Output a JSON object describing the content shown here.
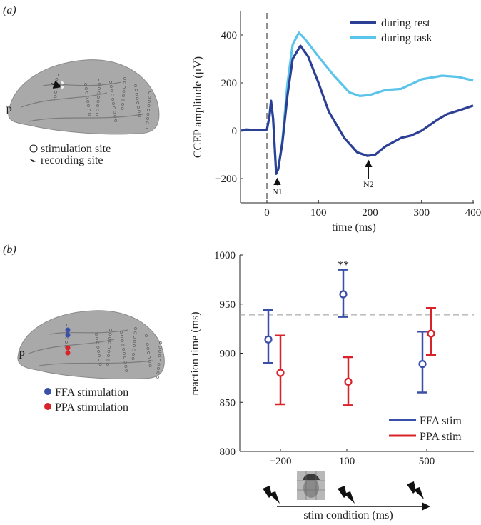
{
  "panel_a": {
    "label": "(a)",
    "brain": {
      "orientation_label": "P"
    },
    "legend": [
      {
        "icon": "open-circle-icon",
        "label": "stimulation site"
      },
      {
        "icon": "arrow-icon",
        "label": "recording site"
      }
    ]
  },
  "panel_b": {
    "label": "(b)",
    "brain": {
      "orientation_label": "P"
    },
    "legend": [
      {
        "icon": "blue-dot-icon",
        "label": "FFA stimulation",
        "color": "#3a50a8"
      },
      {
        "icon": "red-dot-icon",
        "label": "PPA stimulation",
        "color": "#d8232a"
      }
    ],
    "timeline": {
      "label": "stim condition (ms)",
      "icons": [
        "lightning-icon",
        "face-image",
        "lightning-icon",
        "lightning-icon"
      ]
    }
  },
  "chart_data": [
    {
      "type": "line",
      "xlabel": "time (ms)",
      "ylabel": "CCEP amplitude (μV)",
      "xlim": [
        -50,
        400
      ],
      "ylim": [
        -300,
        500
      ],
      "xticks": [
        0,
        100,
        200,
        300,
        400
      ],
      "yticks": [
        -200,
        0,
        200,
        400
      ],
      "xtick_labels": [
        "0",
        "100",
        "200",
        "300",
        "400"
      ],
      "ytick_labels": [
        "−200",
        "0",
        "200",
        "400"
      ],
      "legend_position": "top-right",
      "vline_at": 0,
      "annotations": [
        {
          "text": "N1",
          "x": 20,
          "y": -180
        },
        {
          "text": "N2",
          "x": 197,
          "y": -105
        }
      ],
      "series": [
        {
          "name": "during rest",
          "color": "#2b3f95",
          "x": [
            -50,
            -40,
            -20,
            -5,
            0,
            5,
            8,
            12,
            18,
            22,
            30,
            40,
            50,
            65,
            80,
            100,
            120,
            150,
            175,
            195,
            210,
            230,
            260,
            280,
            300,
            330,
            350,
            380,
            400
          ],
          "y": [
            0,
            5,
            3,
            3,
            5,
            60,
            125,
            50,
            -180,
            -160,
            -50,
            150,
            300,
            355,
            310,
            200,
            80,
            -30,
            -90,
            -105,
            -100,
            -65,
            -30,
            -20,
            0,
            45,
            70,
            90,
            105
          ]
        },
        {
          "name": "during task",
          "color": "#5bc4ea",
          "x": [
            -50,
            -40,
            -20,
            -5,
            0,
            5,
            8,
            12,
            18,
            22,
            30,
            40,
            50,
            62,
            75,
            100,
            130,
            160,
            180,
            200,
            230,
            260,
            300,
            340,
            370,
            400
          ],
          "y": [
            0,
            5,
            3,
            3,
            5,
            60,
            125,
            50,
            -180,
            -160,
            -40,
            200,
            360,
            410,
            380,
            310,
            230,
            160,
            145,
            150,
            170,
            175,
            215,
            230,
            225,
            210
          ]
        }
      ]
    },
    {
      "type": "scatter",
      "xlabel": "stim condition (ms)",
      "ylabel": "reaction time (ms)",
      "categories": [
        "−200",
        "100",
        "500"
      ],
      "ylim": [
        800,
        1000
      ],
      "yticks": [
        800,
        850,
        900,
        950,
        1000
      ],
      "ytick_labels": [
        "800",
        "850",
        "900",
        "950",
        "1000"
      ],
      "baseline": 939,
      "legend_position": "bottom-right",
      "significance": {
        "category": "100",
        "text": "**"
      },
      "series": [
        {
          "name": "FFA stim",
          "color": "#3a50a8",
          "values": [
            914,
            960,
            889
          ],
          "lower": [
            890,
            937,
            860
          ],
          "upper": [
            944,
            985,
            922
          ]
        },
        {
          "name": "PPA stim",
          "color": "#d8232a",
          "values": [
            880,
            871,
            920
          ],
          "lower": [
            848,
            847,
            898
          ],
          "upper": [
            918,
            896,
            946
          ]
        }
      ]
    }
  ]
}
